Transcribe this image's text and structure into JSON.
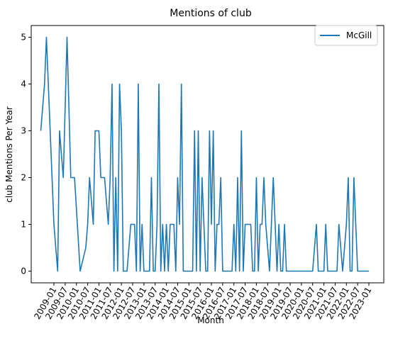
{
  "chart_data": {
    "type": "line",
    "title": "Mentions of club",
    "xlabel": "Month",
    "ylabel": "club Mentions Per Year",
    "ylim": [
      -0.25,
      5.25
    ],
    "yticks": [
      0,
      1,
      2,
      3,
      4,
      5
    ],
    "xticks": [
      "2009-01",
      "2009-07",
      "2010-01",
      "2010-07",
      "2011-01",
      "2011-07",
      "2012-01",
      "2012-07",
      "2013-01",
      "2013-07",
      "2014-01",
      "2014-07",
      "2015-01",
      "2015-07",
      "2016-01",
      "2016-07",
      "2017-01",
      "2017-07",
      "2018-01",
      "2018-07",
      "2019-01",
      "2019-07",
      "2020-01",
      "2020-07",
      "2021-01",
      "2021-07",
      "2022-01",
      "2022-07",
      "2023-01"
    ],
    "legend": {
      "location": "upper right"
    },
    "grid": false,
    "series": [
      {
        "name": "McGill",
        "color": "#1f77b4",
        "x": [
          "2008-06",
          "2008-08",
          "2008-09",
          "2009-01",
          "2009-02",
          "2009-03",
          "2009-04",
          "2009-06",
          "2009-08",
          "2009-10",
          "2009-11",
          "2009-12",
          "2010-03",
          "2010-06",
          "2010-07",
          "2010-08",
          "2010-10",
          "2010-11",
          "2011-01",
          "2011-02",
          "2011-04",
          "2011-06",
          "2011-07",
          "2011-08",
          "2011-09",
          "2011-10",
          "2011-11",
          "2011-12",
          "2012-01",
          "2012-02",
          "2012-03",
          "2012-04",
          "2012-06",
          "2012-07",
          "2012-08",
          "2012-09",
          "2012-10",
          "2012-11",
          "2012-12",
          "2013-01",
          "2013-02",
          "2013-03",
          "2013-04",
          "2013-05",
          "2013-06",
          "2013-07",
          "2013-08",
          "2013-09",
          "2013-10",
          "2013-11",
          "2013-12",
          "2014-01",
          "2014-02",
          "2014-03",
          "2014-04",
          "2014-05",
          "2014-06",
          "2014-07",
          "2014-08",
          "2014-09",
          "2014-10",
          "2014-11",
          "2014-12",
          "2015-01",
          "2015-02",
          "2015-03",
          "2015-04",
          "2015-05",
          "2015-06",
          "2015-07",
          "2015-08",
          "2015-09",
          "2015-10",
          "2015-11",
          "2015-12",
          "2016-01",
          "2016-02",
          "2016-03",
          "2016-04",
          "2016-05",
          "2016-06",
          "2016-07",
          "2016-08",
          "2016-09",
          "2016-10",
          "2016-11",
          "2016-12",
          "2017-01",
          "2017-02",
          "2017-03",
          "2017-04",
          "2017-05",
          "2017-06",
          "2017-07",
          "2017-08",
          "2017-09",
          "2017-10",
          "2017-11",
          "2017-12",
          "2018-01",
          "2018-02",
          "2018-03",
          "2018-04",
          "2018-05",
          "2018-06",
          "2018-07",
          "2018-08",
          "2018-09",
          "2018-10",
          "2018-11",
          "2018-12",
          "2019-01",
          "2019-02",
          "2019-03",
          "2019-04",
          "2019-05",
          "2019-06",
          "2019-07",
          "2019-08",
          "2019-09",
          "2019-10",
          "2019-11",
          "2019-12",
          "2020-01",
          "2020-02",
          "2020-03",
          "2020-04",
          "2020-05",
          "2020-06",
          "2020-07",
          "2020-08",
          "2020-09",
          "2020-10",
          "2020-11",
          "2020-12",
          "2021-01",
          "2021-02",
          "2021-03",
          "2021-04",
          "2021-05",
          "2021-06",
          "2021-07",
          "2021-08",
          "2021-09",
          "2021-10",
          "2021-11",
          "2021-12",
          "2022-01",
          "2022-02",
          "2022-03",
          "2022-04",
          "2022-05",
          "2022-06",
          "2022-07",
          "2022-08",
          "2022-09",
          "2022-10",
          "2022-11",
          "2022-12",
          "2023-01"
        ],
        "values": [
          3,
          4,
          5,
          1,
          0.5,
          0,
          3,
          2,
          5,
          2,
          2,
          2,
          0,
          0.5,
          1,
          2,
          1,
          3,
          3,
          2,
          2,
          1,
          2,
          4,
          0,
          2,
          0,
          4,
          3,
          0,
          0,
          0,
          1,
          1,
          1,
          0,
          4,
          0,
          1,
          0,
          0,
          0,
          0,
          2,
          0,
          0,
          1,
          4,
          0,
          1,
          0,
          1,
          0,
          1,
          1,
          1,
          0,
          2,
          1,
          4,
          0,
          0,
          0,
          0,
          0,
          0,
          3,
          0,
          3,
          0,
          2,
          1,
          0,
          0,
          3,
          1,
          3,
          0,
          1,
          1,
          2,
          0,
          0,
          0,
          0,
          0,
          0,
          1,
          0,
          2,
          0,
          3,
          0,
          1,
          1,
          1,
          1,
          0,
          0,
          2,
          0,
          1,
          1,
          2,
          1,
          0.5,
          0,
          1,
          2,
          1,
          0,
          1,
          0,
          0,
          1,
          0,
          0,
          0,
          0,
          0,
          0,
          0,
          0,
          0,
          0,
          0,
          0,
          0,
          0,
          0,
          0.5,
          1,
          0,
          0,
          0,
          0,
          1,
          0,
          0,
          0,
          0,
          0,
          0,
          1,
          0.5,
          0,
          0.5,
          1,
          2,
          0,
          0,
          2,
          1,
          0,
          0,
          0,
          0,
          0,
          0,
          0
        ]
      }
    ]
  }
}
